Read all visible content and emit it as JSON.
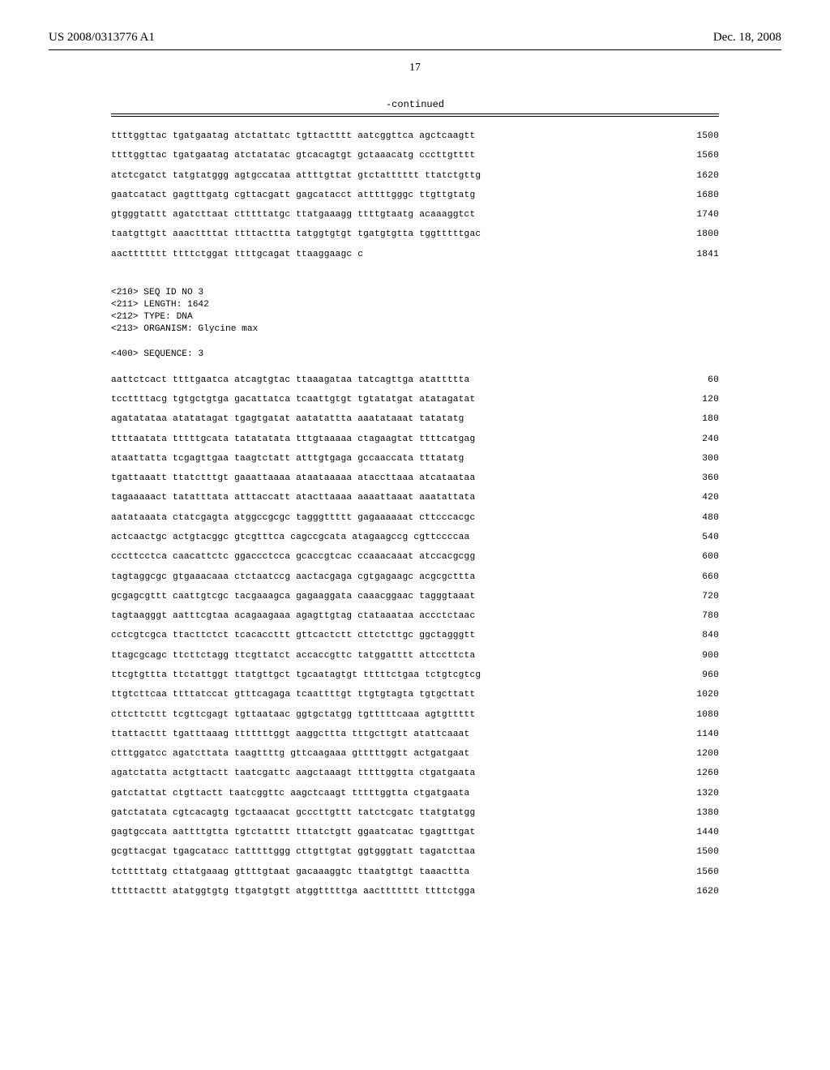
{
  "header": {
    "publication_number": "US 2008/0313776 A1",
    "publication_date": "Dec. 18, 2008"
  },
  "page_number": "17",
  "continued_label": "-continued",
  "sequence_block_1": {
    "lines": [
      {
        "text": "ttttggttac tgatgaatag atctattatc tgttactttt aatcggttca agctcaagtt",
        "num": "1500"
      },
      {
        "text": "ttttggttac tgatgaatag atctatatac gtcacagtgt gctaaacatg cccttgtttt",
        "num": "1560"
      },
      {
        "text": "atctcgatct tatgtatggg agtgccataa attttgttat gtctatttttt ttatctgttg",
        "num": "1620"
      },
      {
        "text": "gaatcatact gagtttgatg cgttacgatt gagcatacct atttttgggc ttgttgtatg",
        "num": "1680"
      },
      {
        "text": "gtgggtattt agatcttaat ctttttatgc ttatgaaagg ttttgtaatg acaaaggtct",
        "num": "1740"
      },
      {
        "text": "taatgttgtt aaacttttat ttttacttta tatggtgtgt tgatgtgtta tggtttttgac",
        "num": "1800"
      },
      {
        "text": "aacttttttt ttttctggat ttttgcagat ttaaggaagc c",
        "num": "1841"
      }
    ]
  },
  "meta": {
    "seq_id": "<210> SEQ ID NO 3",
    "length": "<211> LENGTH: 1642",
    "type": "<212> TYPE: DNA",
    "organism": "<213> ORGANISM: Glycine max",
    "sequence_label": "<400> SEQUENCE: 3"
  },
  "sequence_block_2": {
    "lines": [
      {
        "text": "aattctcact ttttgaatca atcagtgtac ttaaagataa tatcagttga atattttta",
        "num": "60"
      },
      {
        "text": "tccttttacg tgtgctgtga gacattatca tcaattgtgt tgtatatgat atatagatat",
        "num": "120"
      },
      {
        "text": "agatatataa atatatagat tgagtgatat aatatattta aaatataaat tatatatg",
        "num": "180"
      },
      {
        "text": "ttttaatata tttttgcata tatatatata tttgtaaaaa ctagaagtat ttttcatgag",
        "num": "240"
      },
      {
        "text": "ataattatta tcgagttgaa taagtctatt atttgtgaga gccaaccata tttatatg",
        "num": "300"
      },
      {
        "text": "tgattaaatt ttatctttgt gaaattaaaa ataataaaaa ataccttaaa atcataataa",
        "num": "360"
      },
      {
        "text": "tagaaaaact tatatttata atttaccatt atacttaaaa aaaattaaat aaatattata",
        "num": "420"
      },
      {
        "text": "aatataaata ctatcgagta atggccgcgc tagggttttt gagaaaaaat cttcccacgc",
        "num": "480"
      },
      {
        "text": "actcaactgc actgtacggc gtcgtttca cagccgcata atagaagccg cgttccccaa",
        "num": "540"
      },
      {
        "text": "cccttcctca caacattctc ggaccctcca gcaccgtcac ccaaacaaat atccacgcgg",
        "num": "600"
      },
      {
        "text": "tagtaggcgc gtgaaacaaa ctctaatccg aactacgaga cgtgagaagc acgcgcttta",
        "num": "660"
      },
      {
        "text": "gcgagcgttt caattgtcgc tacgaaagca gagaaggata caaacggaac tagggtaaat",
        "num": "720"
      },
      {
        "text": "tagtaagggt aatttcgtaa acagaagaaa agagttgtag ctataaataa accctctaac",
        "num": "780"
      },
      {
        "text": "cctcgtcgca ttacttctct tcacaccttt gttcactctt cttctcttgc ggctagggtt",
        "num": "840"
      },
      {
        "text": "ttagcgcagc ttcttctagg ttcgttatct accaccgttc tatggatttt attccttcta",
        "num": "900"
      },
      {
        "text": "ttcgtgttta ttctattggt ttatgttgct tgcaatagtgt tttttctgaa tctgtcgtcg",
        "num": "960"
      },
      {
        "text": "ttgtcttcaa ttttatccat gtttcagaga tcaattttgt ttgtgtagta tgtgcttatt",
        "num": "1020"
      },
      {
        "text": "cttcttcttt tcgttcgagt tgttaataac ggtgctatgg tgtttttcaaa agtgttttt",
        "num": "1080"
      },
      {
        "text": "ttattacttt tgatttaaag tttttttggt aaggcttta tttgcttgtt atattcaaat",
        "num": "1140"
      },
      {
        "text": "ctttggatcc agatcttata taagttttg gttcaagaaa gtttttggtt actgatgaat",
        "num": "1200"
      },
      {
        "text": "agatctatta actgttactt taatcgattc aagctaaagt tttttggtta ctgatgaata",
        "num": "1260"
      },
      {
        "text": "gatctattat ctgttactt taatcggttc aagctcaagt tttttggtta ctgatgaata",
        "num": "1320"
      },
      {
        "text": "gatctatata cgtcacagtg tgctaaacat gcccttgttt tatctcgatc ttatgtatgg",
        "num": "1380"
      },
      {
        "text": "gagtgccata aattttgtta tgtctatttt tttatctgtt ggaatcatac tgagtttgat",
        "num": "1440"
      },
      {
        "text": "gcgttacgat tgagcatacc tatttttggg cttgttgtat ggtgggtatt tagatcttaa",
        "num": "1500"
      },
      {
        "text": "tctttttatg cttatgaaag gttttgtaat gacaaaggtc ttaatgttgt taaacttta",
        "num": "1560"
      },
      {
        "text": "tttttacttt atatggtgtg ttgatgtgtt atggtttttga aacttttttt ttttctgga",
        "num": "1620"
      }
    ]
  }
}
